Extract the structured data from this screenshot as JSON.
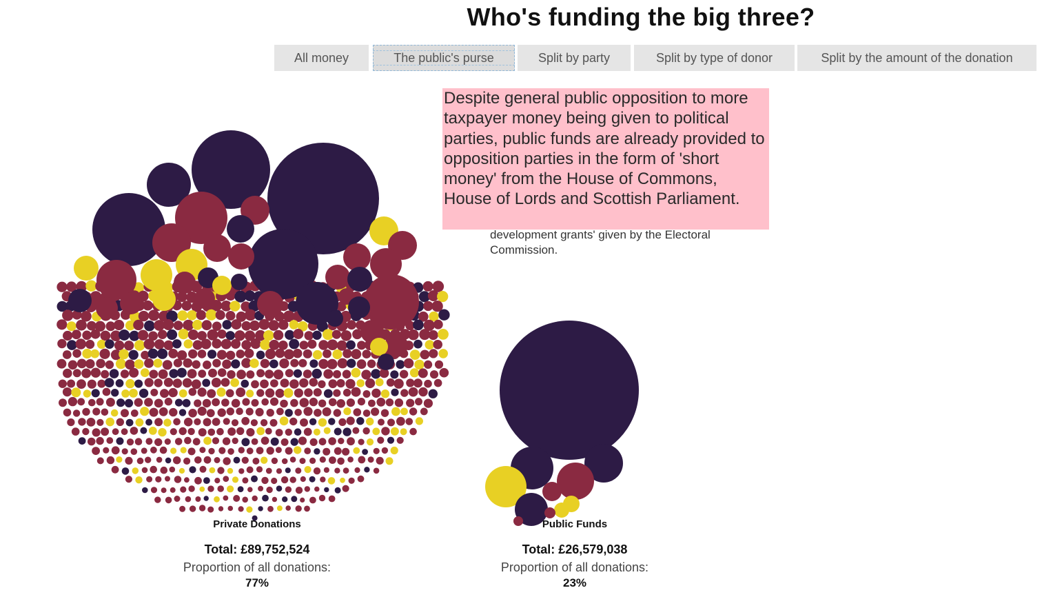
{
  "page": {
    "title": "Who's funding the big three?"
  },
  "tabs": [
    {
      "label": "All money",
      "active": false
    },
    {
      "label": "The public's purse",
      "active": true
    },
    {
      "label": "Split by party",
      "active": false
    },
    {
      "label": "Split by type of donor",
      "active": false
    },
    {
      "label": "Split by the amount of the donation",
      "active": false
    }
  ],
  "description": {
    "text": "Despite general public opposition to more taxpayer money being given to political parties, public funds are already provided to opposition parties in the form of 'short money' from the House of Commons, House of Lords and Scottish Parliament.",
    "overflow_text": "development grants' given by the Electoral Commission."
  },
  "colors": {
    "dark_purple": "#2d1b45",
    "maroon": "#8a2a41",
    "yellow": "#e8d024",
    "description_bg": "#ffc0cb",
    "tab_bg": "#e5e5e5"
  },
  "clusters": [
    {
      "label": "Private Donations",
      "total_label": "Total: £89,752,524",
      "proportion_label": "Proportion of all donations:",
      "proportion_value": "77%"
    },
    {
      "label": "Public Funds",
      "total_label": "Total: £26,579,038",
      "proportion_label": "Proportion of all donations:",
      "proportion_value": "23%"
    }
  ]
}
